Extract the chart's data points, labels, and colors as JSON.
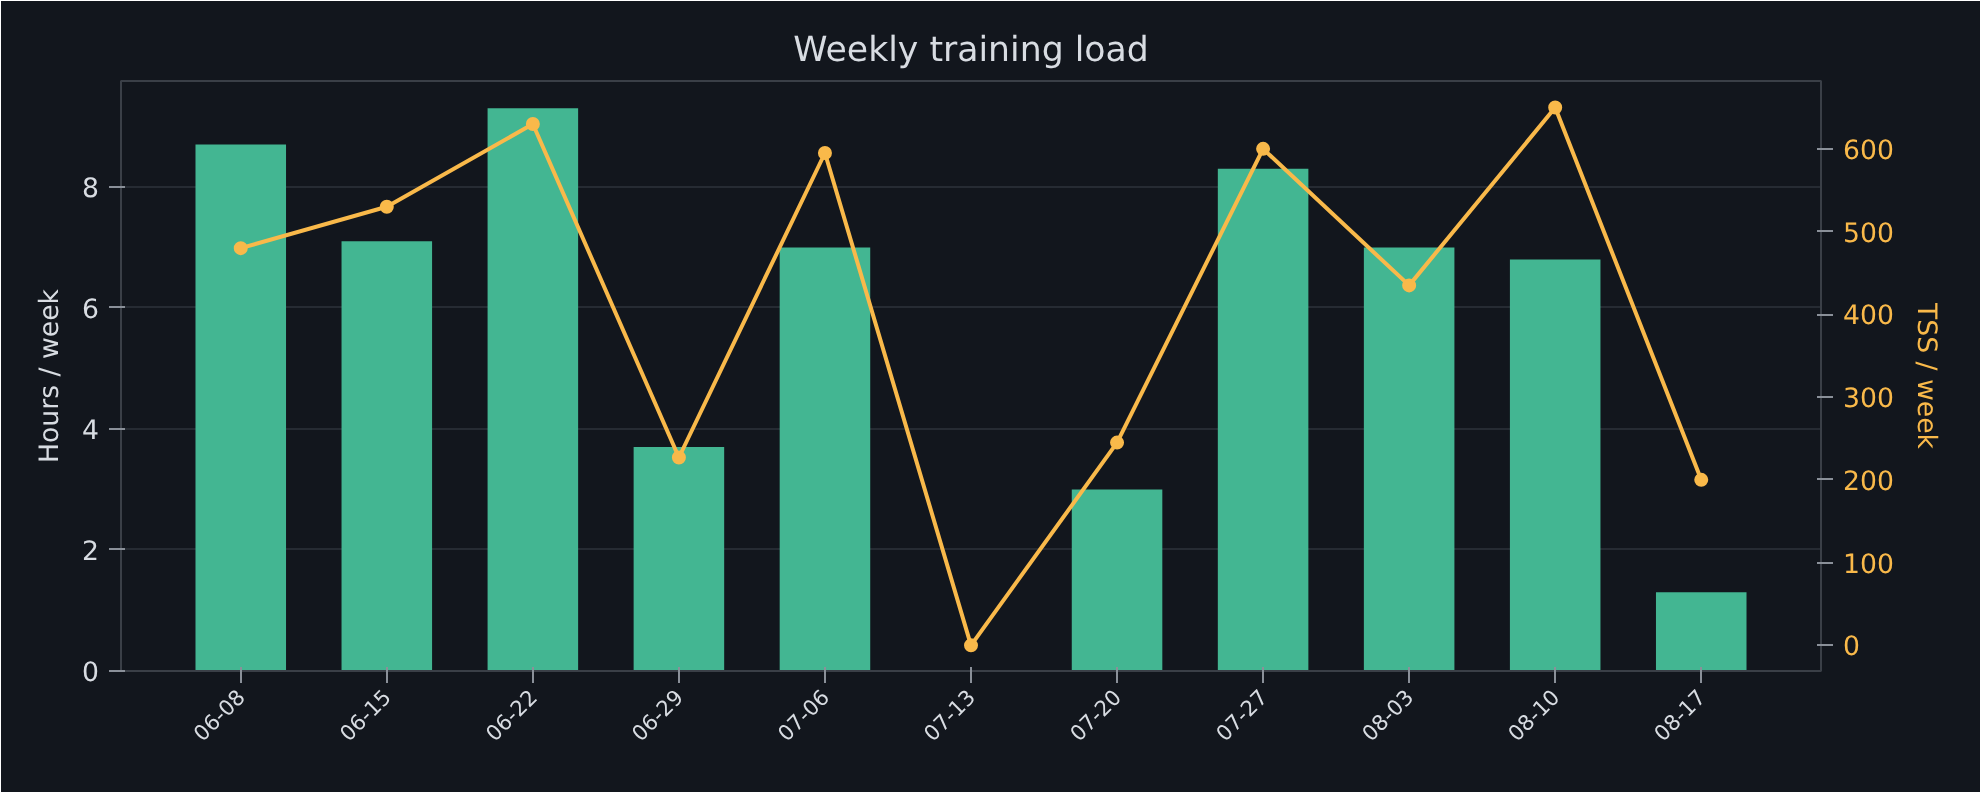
{
  "chart_data": {
    "type": "bar",
    "title": "Weekly training load",
    "ylabel": "Hours / week",
    "y2label": "TSS / week",
    "categories": [
      "06-08",
      "06-15",
      "06-22",
      "06-29",
      "07-06",
      "07-13",
      "07-20",
      "07-27",
      "08-03",
      "08-10",
      "08-17"
    ],
    "series": [
      {
        "color": "#43b692",
        "values": [
          8.7,
          7.1,
          9.3,
          3.7,
          7.0,
          0,
          3.0,
          8.3,
          7.0,
          6.8,
          1.3
        ]
      },
      {
        "type": "line",
        "axis": "y2",
        "color": "#f9b94a",
        "values": [
          480,
          530,
          630,
          227,
          595,
          0,
          245,
          600,
          435,
          650,
          200
        ]
      }
    ],
    "ylim": [
      0,
      9.75
    ],
    "yticks": [
      0,
      2,
      4,
      6,
      8
    ],
    "y2lim": [
      -31,
      682
    ],
    "y2ticks": [
      0,
      100,
      200,
      300,
      400,
      500,
      600
    ],
    "grid": "y",
    "marker": "circle",
    "line_style": "solid"
  }
}
